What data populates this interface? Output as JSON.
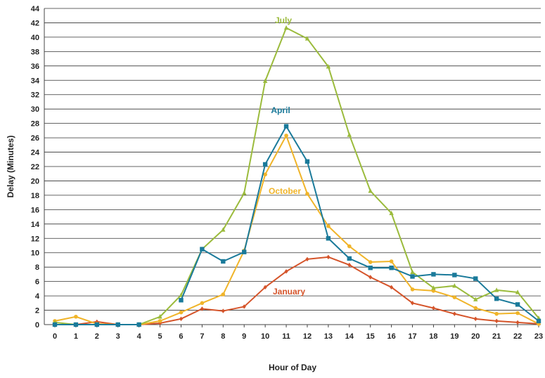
{
  "chart_data": {
    "type": "line",
    "xlabel": "Hour of Day",
    "ylabel": "Delay (Minutes)",
    "x": [
      0,
      1,
      2,
      3,
      4,
      5,
      6,
      7,
      8,
      9,
      10,
      11,
      12,
      13,
      14,
      15,
      16,
      17,
      18,
      19,
      20,
      21,
      22,
      23
    ],
    "ylim": [
      0,
      44
    ],
    "yticks": [
      0,
      2,
      4,
      6,
      8,
      10,
      12,
      14,
      16,
      18,
      20,
      22,
      24,
      26,
      28,
      30,
      32,
      34,
      36,
      38,
      40,
      42,
      44
    ],
    "grid": "horizontal",
    "legend": "inline labels",
    "series": [
      {
        "name": "July",
        "color": "#9bbb3c",
        "marker": "triangle",
        "values": [
          0.3,
          0,
          0,
          0,
          0,
          1.1,
          4.1,
          10.5,
          13.2,
          18.3,
          33.9,
          41.3,
          39.8,
          35.9,
          26.4,
          18.6,
          15.5,
          7.3,
          5.1,
          5.4,
          3.5,
          4.8,
          4.5,
          0.9
        ]
      },
      {
        "name": "April",
        "color": "#1a7a9a",
        "marker": "square",
        "values": [
          0,
          0,
          0,
          0,
          0,
          null,
          3.4,
          10.5,
          8.8,
          10.1,
          22.3,
          27.6,
          22.7,
          12.0,
          9.2,
          7.9,
          7.9,
          6.7,
          7.0,
          6.9,
          6.4,
          3.6,
          2.8,
          0.5
        ]
      },
      {
        "name": "October",
        "color": "#f0b429",
        "marker": "circle",
        "values": [
          0.5,
          1.1,
          0.1,
          0,
          0,
          0.5,
          1.7,
          3.0,
          4.2,
          10.3,
          20.9,
          26.3,
          18.2,
          13.7,
          10.9,
          8.7,
          8.8,
          4.9,
          4.7,
          3.8,
          2.3,
          1.5,
          1.6,
          0.1
        ]
      },
      {
        "name": "January",
        "color": "#d5542a",
        "marker": "diamond",
        "values": [
          0,
          0,
          0.4,
          0,
          0,
          0.2,
          0.8,
          2.2,
          1.9,
          2.5,
          5.2,
          7.4,
          9.1,
          9.4,
          8.3,
          6.6,
          5.2,
          3.0,
          2.3,
          1.5,
          0.8,
          0.5,
          0.3,
          0.1
        ]
      }
    ]
  }
}
